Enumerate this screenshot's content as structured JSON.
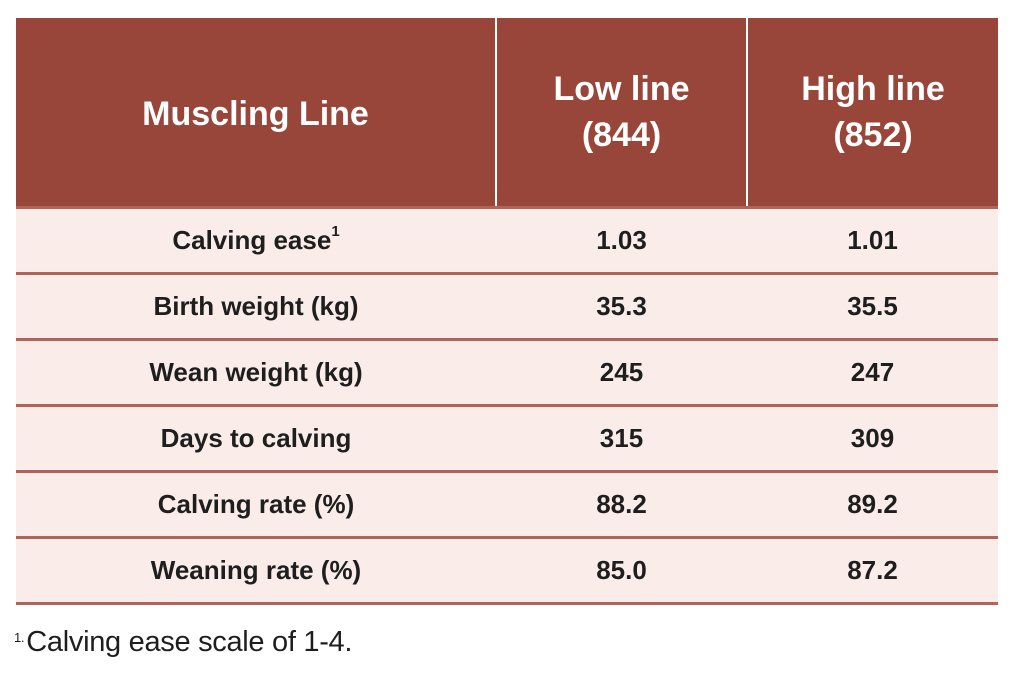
{
  "table": {
    "headers": [
      {
        "line1": "Muscling Line",
        "line2": ""
      },
      {
        "line1": "Low line",
        "line2": "(844)"
      },
      {
        "line1": "High line",
        "line2": "(852)"
      }
    ],
    "rows": [
      {
        "label": "Calving ease",
        "sup": "1",
        "low": "1.03",
        "high": "1.01"
      },
      {
        "label": "Birth weight (kg)",
        "sup": "",
        "low": "35.3",
        "high": "35.5"
      },
      {
        "label": "Wean weight (kg)",
        "sup": "",
        "low": "245",
        "high": "247"
      },
      {
        "label": "Days to calving",
        "sup": "",
        "low": "315",
        "high": "309"
      },
      {
        "label": "Calving rate (%)",
        "sup": "",
        "low": "88.2",
        "high": "89.2"
      },
      {
        "label": "Weaning rate (%)",
        "sup": "",
        "low": "85.0",
        "high": "87.2"
      }
    ]
  },
  "footnote": {
    "mark": "1.",
    "text": "Calving ease scale of 1-4."
  },
  "colors": {
    "header_bg": "#98453a",
    "row_bg": "#f9ece9",
    "row_border": "#b0645a"
  }
}
